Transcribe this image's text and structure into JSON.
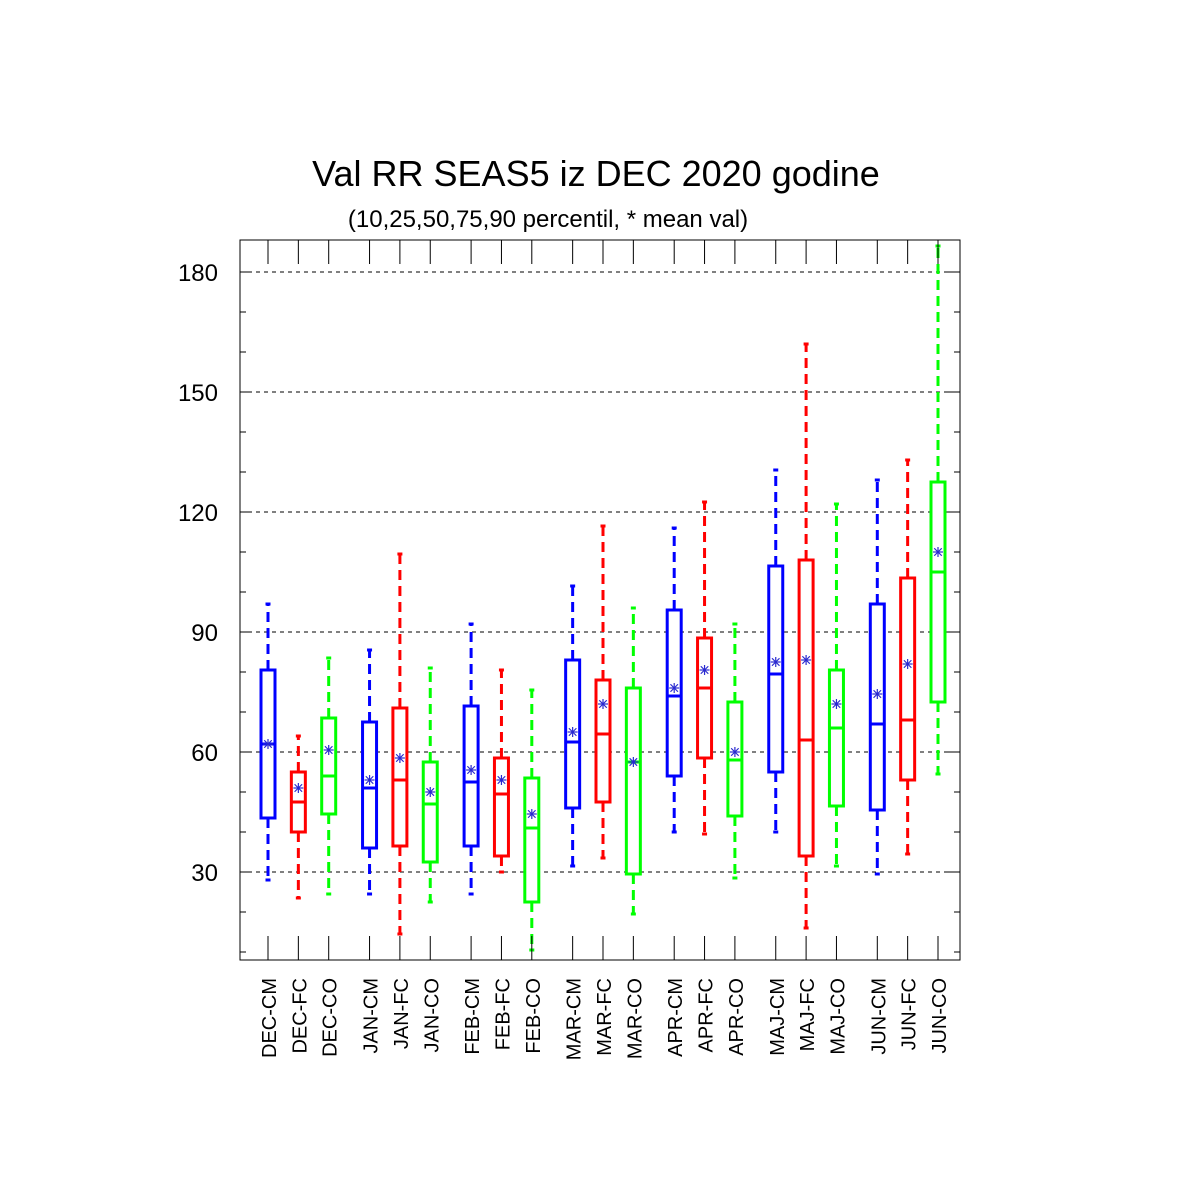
{
  "chart_data": {
    "type": "boxplot",
    "title": "Val RR SEAS5 iz DEC 2020 godine",
    "subtitle": "(10,25,50,75,90 percentil, * mean val)",
    "ylim": [
      8,
      188
    ],
    "yticks": [
      30,
      60,
      90,
      120,
      150,
      180
    ],
    "grid": "horizontal dashed at major ticks",
    "colors": {
      "CM": "#0000ff",
      "FC": "#ff0000",
      "CO": "#00ff00"
    },
    "groups": [
      {
        "label": "DEC-CM",
        "kind": "CM",
        "p10": 28,
        "p25": 43.5,
        "median": 62,
        "p75": 80.5,
        "p90": 97,
        "mean": 62
      },
      {
        "label": "DEC-FC",
        "kind": "FC",
        "p10": 23.5,
        "p25": 40,
        "median": 47.5,
        "p75": 55,
        "p90": 64,
        "mean": 51
      },
      {
        "label": "DEC-CO",
        "kind": "CO",
        "p10": 24.5,
        "p25": 44.5,
        "median": 54,
        "p75": 68.5,
        "p90": 83.5,
        "mean": 60.5
      },
      {
        "label": "JAN-CM",
        "kind": "CM",
        "p10": 24.5,
        "p25": 36,
        "median": 51,
        "p75": 67.5,
        "p90": 85.5,
        "mean": 53
      },
      {
        "label": "JAN-FC",
        "kind": "FC",
        "p10": 14.5,
        "p25": 36.5,
        "median": 53,
        "p75": 71,
        "p90": 109.5,
        "mean": 58.5
      },
      {
        "label": "JAN-CO",
        "kind": "CO",
        "p10": 22.5,
        "p25": 32.5,
        "median": 47,
        "p75": 57.5,
        "p90": 81,
        "mean": 50
      },
      {
        "label": "FEB-CM",
        "kind": "CM",
        "p10": 24.5,
        "p25": 36.5,
        "median": 52.5,
        "p75": 71.5,
        "p90": 92,
        "mean": 55.5
      },
      {
        "label": "FEB-FC",
        "kind": "FC",
        "p10": 30,
        "p25": 34,
        "median": 49.5,
        "p75": 58.5,
        "p90": 80.5,
        "mean": 53
      },
      {
        "label": "FEB-CO",
        "kind": "CO",
        "p10": 10.5,
        "p25": 22.5,
        "median": 41,
        "p75": 53.5,
        "p90": 75.5,
        "mean": 44.5
      },
      {
        "label": "MAR-CM",
        "kind": "CM",
        "p10": 31.5,
        "p25": 46,
        "median": 62.5,
        "p75": 83,
        "p90": 101.5,
        "mean": 65
      },
      {
        "label": "MAR-FC",
        "kind": "FC",
        "p10": 33.5,
        "p25": 47.5,
        "median": 64.5,
        "p75": 78,
        "p90": 116.5,
        "mean": 72
      },
      {
        "label": "MAR-CO",
        "kind": "CO",
        "p10": 19.5,
        "p25": 29.5,
        "median": 57.5,
        "p75": 76,
        "p90": 96,
        "mean": 57.5
      },
      {
        "label": "APR-CM",
        "kind": "CM",
        "p10": 40,
        "p25": 54,
        "median": 74,
        "p75": 95.5,
        "p90": 116,
        "mean": 76
      },
      {
        "label": "APR-FC",
        "kind": "FC",
        "p10": 39.5,
        "p25": 58.5,
        "median": 76,
        "p75": 88.5,
        "p90": 122.5,
        "mean": 80.5
      },
      {
        "label": "APR-CO",
        "kind": "CO",
        "p10": 28.5,
        "p25": 44,
        "median": 58,
        "p75": 72.5,
        "p90": 92,
        "mean": 60
      },
      {
        "label": "MAJ-CM",
        "kind": "CM",
        "p10": 40,
        "p25": 55,
        "median": 79.5,
        "p75": 106.5,
        "p90": 130.5,
        "mean": 82.5
      },
      {
        "label": "MAJ-FC",
        "kind": "FC",
        "p10": 16,
        "p25": 34,
        "median": 63,
        "p75": 108,
        "p90": 162,
        "mean": 83
      },
      {
        "label": "MAJ-CO",
        "kind": "CO",
        "p10": 31.5,
        "p25": 46.5,
        "median": 66,
        "p75": 80.5,
        "p90": 122,
        "mean": 72
      },
      {
        "label": "JUN-CM",
        "kind": "CM",
        "p10": 29.5,
        "p25": 45.5,
        "median": 67,
        "p75": 97,
        "p90": 128,
        "mean": 74.5
      },
      {
        "label": "JUN-FC",
        "kind": "FC",
        "p10": 34.5,
        "p25": 53,
        "median": 68,
        "p75": 103.5,
        "p90": 133,
        "mean": 82
      },
      {
        "label": "JUN-CO",
        "kind": "CO",
        "p10": 54.5,
        "p25": 72.5,
        "median": 105,
        "p75": 127.5,
        "p90": 186.5,
        "mean": 110
      }
    ]
  }
}
